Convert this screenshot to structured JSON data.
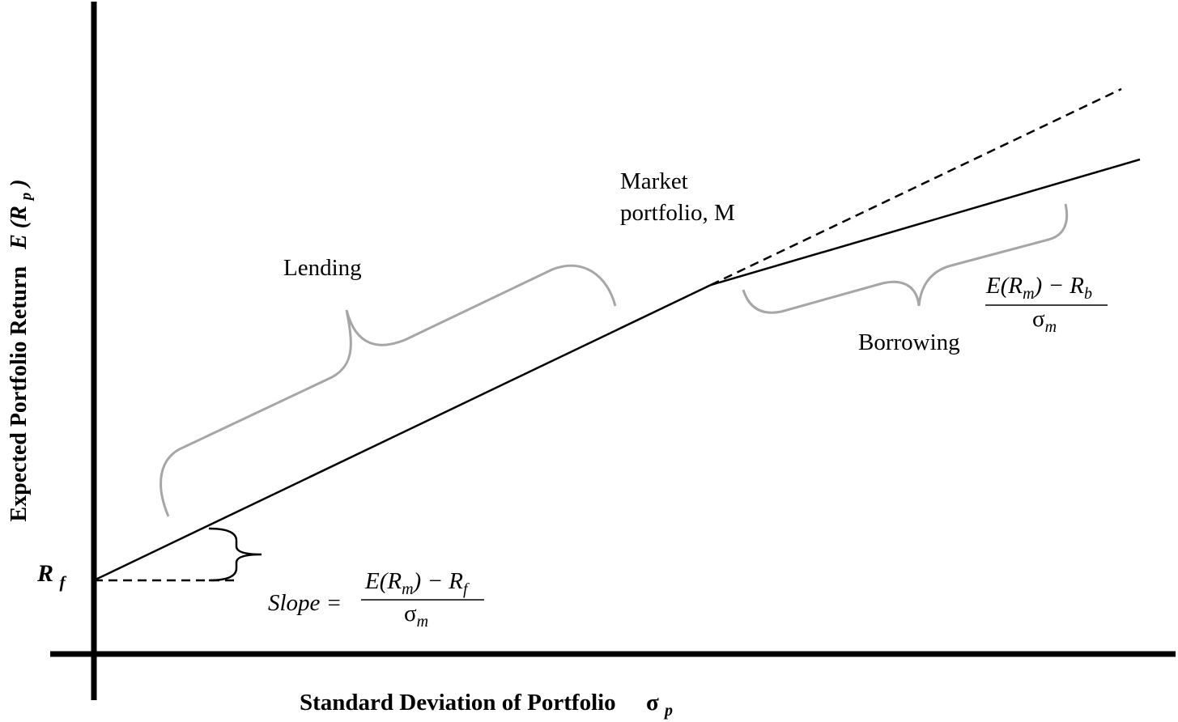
{
  "x_axis": {
    "label": "Standard Deviation of Portfolio",
    "symbol": "σ",
    "symbol_sub": "p"
  },
  "y_axis": {
    "label": "Expected Portfolio Return",
    "symbol": "E (R",
    "symbol_sub": "p",
    "symbol_close": ")"
  },
  "rf_label": {
    "main": "R",
    "sub": "f"
  },
  "market_label": {
    "line1": "Market",
    "line2": "portfolio, M"
  },
  "lending_label": "Lending",
  "borrowing_label": "Borrowing",
  "slope_formula": {
    "prefix": "Slope =",
    "num_main": "E(R",
    "num_sub": "m",
    "num_rest": ") − R",
    "num_sub2": "f",
    "den_main": "σ",
    "den_sub": "m"
  },
  "borrow_formula": {
    "num_main": "E(R",
    "num_sub": "m",
    "num_rest": ") − R",
    "num_sub2": "b",
    "den_main": "σ",
    "den_sub": "m"
  },
  "colors": {
    "line": "#000000",
    "brace": "#a6a6a6"
  }
}
